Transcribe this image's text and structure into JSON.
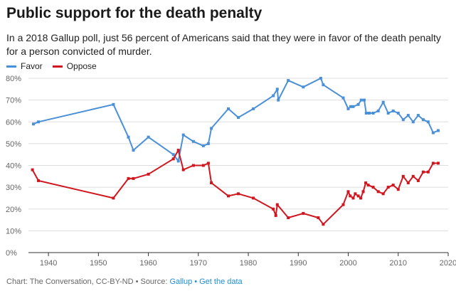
{
  "title": "Public support for the death penalty",
  "subtitle": "In a 2018 Gallup poll, just 56 percent of Americans said that they were in favor of the death penalty for a person convicted of murder.",
  "footer": {
    "credit": "Chart: The Conversation, CC-BY-ND • Source: ",
    "source_link": "Gallup",
    "separator": "•",
    "data_link": "Get the data"
  },
  "chart_data": {
    "type": "line",
    "xlabel": "",
    "ylabel": "",
    "xlim": [
      1936,
      2020
    ],
    "ylim": [
      0,
      80
    ],
    "x_ticks": [
      1940,
      1950,
      1960,
      1970,
      1980,
      1990,
      2000,
      2010,
      2020
    ],
    "y_ticks": [
      0,
      10,
      20,
      30,
      40,
      50,
      60,
      70,
      80
    ],
    "y_tick_labels": [
      "0%",
      "10%",
      "20%",
      "30%",
      "40%",
      "50%",
      "60%",
      "70%",
      "80%"
    ],
    "grid": "horizontal",
    "legend_position": "top-left",
    "series": [
      {
        "name": "Favor",
        "color": "#4a90d9",
        "points": [
          [
            1937,
            59
          ],
          [
            1938,
            60
          ],
          [
            1953,
            68
          ],
          [
            1956,
            53
          ],
          [
            1957,
            47
          ],
          [
            1960,
            53
          ],
          [
            1965,
            45
          ],
          [
            1966,
            42
          ],
          [
            1967,
            54
          ],
          [
            1969,
            51
          ],
          [
            1971,
            49
          ],
          [
            1972,
            50
          ],
          [
            1972.6,
            57
          ],
          [
            1976,
            66
          ],
          [
            1978,
            62
          ],
          [
            1981,
            66
          ],
          [
            1985,
            72
          ],
          [
            1985.8,
            75
          ],
          [
            1986,
            70
          ],
          [
            1988,
            79
          ],
          [
            1991,
            76
          ],
          [
            1994.5,
            80
          ],
          [
            1995,
            77
          ],
          [
            1999,
            71
          ],
          [
            2000,
            66
          ],
          [
            2000.5,
            67
          ],
          [
            2001,
            67
          ],
          [
            2002,
            68
          ],
          [
            2002.6,
            70
          ],
          [
            2003.2,
            70
          ],
          [
            2003.6,
            64
          ],
          [
            2004.2,
            64
          ],
          [
            2005,
            64
          ],
          [
            2006,
            65
          ],
          [
            2007,
            69
          ],
          [
            2008,
            64
          ],
          [
            2009,
            65
          ],
          [
            2010,
            64
          ],
          [
            2011,
            61
          ],
          [
            2012,
            63
          ],
          [
            2013,
            60
          ],
          [
            2014,
            63
          ],
          [
            2015,
            61
          ],
          [
            2016,
            60
          ],
          [
            2017,
            55
          ],
          [
            2018,
            56
          ]
        ]
      },
      {
        "name": "Oppose",
        "color": "#d0161e",
        "points": [
          [
            1936.8,
            38
          ],
          [
            1938,
            33
          ],
          [
            1953,
            25
          ],
          [
            1956,
            34
          ],
          [
            1957,
            34
          ],
          [
            1960,
            36
          ],
          [
            1965,
            43
          ],
          [
            1966,
            47
          ],
          [
            1967,
            38
          ],
          [
            1969,
            40
          ],
          [
            1971,
            40
          ],
          [
            1972,
            41
          ],
          [
            1972.6,
            32
          ],
          [
            1976,
            26
          ],
          [
            1978,
            27
          ],
          [
            1981,
            25
          ],
          [
            1985,
            20
          ],
          [
            1985.5,
            17
          ],
          [
            1985.8,
            22
          ],
          [
            1988,
            16
          ],
          [
            1991,
            18
          ],
          [
            1994,
            16
          ],
          [
            1995,
            13
          ],
          [
            1999,
            22
          ],
          [
            2000,
            28
          ],
          [
            2000.4,
            26
          ],
          [
            2001,
            25
          ],
          [
            2001.4,
            27
          ],
          [
            2002,
            26
          ],
          [
            2002.5,
            25
          ],
          [
            2003,
            28
          ],
          [
            2003.5,
            32
          ],
          [
            2004,
            31
          ],
          [
            2005,
            30
          ],
          [
            2006,
            28
          ],
          [
            2007,
            27
          ],
          [
            2008,
            30
          ],
          [
            2009,
            31
          ],
          [
            2010,
            29
          ],
          [
            2011,
            35
          ],
          [
            2012,
            32
          ],
          [
            2013,
            35
          ],
          [
            2014,
            33
          ],
          [
            2015,
            37
          ],
          [
            2016,
            37
          ],
          [
            2017,
            41
          ],
          [
            2018,
            41
          ]
        ]
      }
    ]
  }
}
